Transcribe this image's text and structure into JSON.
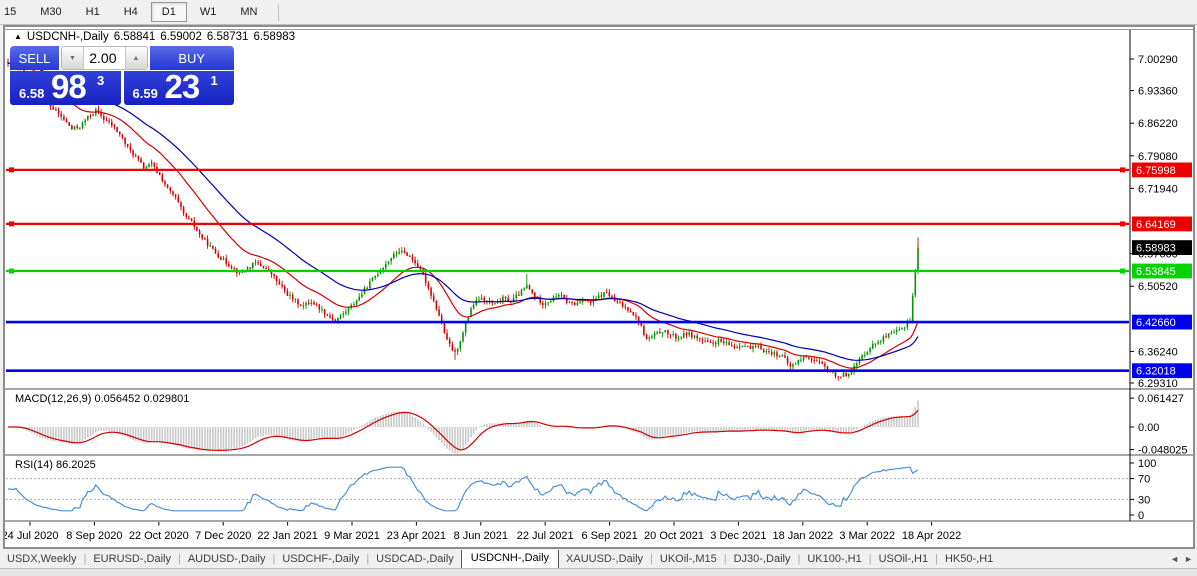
{
  "toolbar": {
    "timeframes": [
      {
        "label": "15",
        "active": false
      },
      {
        "label": "M30",
        "active": false
      },
      {
        "label": "H1",
        "active": false
      },
      {
        "label": "H4",
        "active": false
      },
      {
        "label": "D1",
        "active": true
      },
      {
        "label": "W1",
        "active": false
      },
      {
        "label": "MN",
        "active": false
      }
    ]
  },
  "window": {
    "collapse_icon": "▲",
    "title": "USDCNH-,Daily",
    "ohlc": {
      "open": "6.58841",
      "high": "6.59002",
      "low": "6.58731",
      "close": "6.58983"
    }
  },
  "trade_panel": {
    "sell_label": "SELL",
    "buy_label": "BUY",
    "volume": "2.00",
    "spinner_down": "▼",
    "spinner_up": "▲",
    "sell_price": {
      "small": "6.58",
      "big": "98",
      "sup": "3"
    },
    "buy_price": {
      "small": "6.59",
      "big": "23",
      "sup": "1"
    }
  },
  "colors": {
    "candle_up": "#009600",
    "candle_down": "#dc0000",
    "ma_fast": "#d40000",
    "ma_slow": "#0000b4",
    "level_red": "#ee0000",
    "level_green": "#00d300",
    "level_blue": "#0000f0",
    "current_label_bg": "#000000",
    "macd_hist": "#c9c9c9",
    "macd_signal": "#d40000",
    "rsi_line": "#4a90d9",
    "grid_dash": "#b0b0b0",
    "axis_text": "#000000"
  },
  "chart_data": {
    "type": "candlestick+indicators",
    "symbol": "USDCNH-",
    "timeframe": "Daily",
    "price_range_visible": [
      6.2931,
      7.0029
    ],
    "price_axis_ticks": [
      "7.00290",
      "6.93360",
      "6.86220",
      "6.79080",
      "6.71940",
      "6.57660",
      "6.50520",
      "6.36240",
      "6.29310"
    ],
    "current_price": 6.58983,
    "current_price_label": "6.58983",
    "levels": [
      {
        "label": "6.75998",
        "price": 6.75998,
        "color": "red"
      },
      {
        "label": "6.64169",
        "price": 6.64169,
        "color": "red"
      },
      {
        "label": "6.53845",
        "price": 6.53845,
        "color": "green"
      },
      {
        "label": "6.42660",
        "price": 6.4266,
        "color": "blue"
      },
      {
        "label": "6.32018",
        "price": 6.32018,
        "color": "blue"
      }
    ],
    "date_ticks": [
      "24 Jul 2020",
      "8 Sep 2020",
      "22 Oct 2020",
      "7 Dec 2020",
      "22 Jan 2021",
      "9 Mar 2021",
      "23 Apr 2021",
      "8 Jun 2021",
      "22 Jul 2021",
      "6 Sep 2021",
      "20 Oct 2021",
      "3 Dec 2021",
      "18 Jan 2022",
      "3 Mar 2022",
      "18 Apr 2022"
    ],
    "closes": [
      6.99,
      6.992,
      6.968,
      6.945,
      6.925,
      6.905,
      6.888,
      6.87,
      6.85,
      6.855,
      6.875,
      6.89,
      6.872,
      6.858,
      6.838,
      6.808,
      6.788,
      6.765,
      6.772,
      6.748,
      6.718,
      6.698,
      6.662,
      6.645,
      6.618,
      6.598,
      6.578,
      6.562,
      6.548,
      6.532,
      6.545,
      6.556,
      6.548,
      6.532,
      6.508,
      6.488,
      6.472,
      6.462,
      6.472,
      6.458,
      6.442,
      6.43,
      6.445,
      6.462,
      6.482,
      6.505,
      6.528,
      6.548,
      6.568,
      6.582,
      6.575,
      6.558,
      6.528,
      6.488,
      6.442,
      6.385,
      6.358,
      6.402,
      6.458,
      6.478,
      6.472,
      6.465,
      6.478,
      6.472,
      6.488,
      6.505,
      6.482,
      6.468,
      6.475,
      6.488,
      6.472,
      6.465,
      6.478,
      6.468,
      6.482,
      6.492,
      6.472,
      6.462,
      6.452,
      6.428,
      6.388,
      6.398,
      6.408,
      6.398,
      6.392,
      6.402,
      6.395,
      6.385,
      6.378,
      6.385,
      6.378,
      6.372,
      6.378,
      6.368,
      6.372,
      6.362,
      6.358,
      6.352,
      6.328,
      6.342,
      6.352,
      6.342,
      6.332,
      6.318,
      6.308,
      6.312,
      6.328,
      6.352,
      6.372,
      6.385,
      6.395,
      6.402,
      6.412,
      6.432,
      6.59
    ],
    "spikes": [
      {
        "i": 18,
        "price": 6.78,
        "dir": "high"
      },
      {
        "i": 49,
        "price": 6.589,
        "dir": "high"
      },
      {
        "i": 56,
        "price": 6.344,
        "dir": "low"
      },
      {
        "i": 65,
        "price": 6.532,
        "dir": "high"
      },
      {
        "i": 104,
        "price": 6.298,
        "dir": "low"
      },
      {
        "i": 114,
        "price": 6.612,
        "dir": "high"
      }
    ],
    "macd": {
      "label": "MACD(12,26,9)",
      "value_main": "0.056452",
      "value_signal": "0.029801",
      "axis_ticks": [
        "0.061427",
        "0.00",
        "-0.048025"
      ],
      "axis_values": [
        0.061427,
        0.0,
        -0.048025
      ]
    },
    "rsi": {
      "label": "RSI(14)",
      "value": "86.2025",
      "axis_ticks": [
        "100",
        "70",
        "30",
        "0"
      ],
      "axis_values": [
        100,
        70,
        30,
        0
      ],
      "dashed_levels": [
        70,
        30
      ]
    }
  },
  "tab_bar": {
    "tabs": [
      {
        "label": "USDX,Weekly",
        "active": false
      },
      {
        "label": "EURUSD-,Daily",
        "active": false
      },
      {
        "label": "AUDUSD-,Daily",
        "active": false
      },
      {
        "label": "USDCHF-,Daily",
        "active": false
      },
      {
        "label": "USDCAD-,Daily",
        "active": false
      },
      {
        "label": "USDCNH-,Daily",
        "active": true
      },
      {
        "label": "XAUUSD-,Daily",
        "active": false
      },
      {
        "label": "UKOil-,M15",
        "active": false
      },
      {
        "label": "DJ30-,Daily",
        "active": false
      },
      {
        "label": "UK100-,H1",
        "active": false
      },
      {
        "label": "USOil-,H1",
        "active": false
      },
      {
        "label": "HK50-,H1",
        "active": false
      }
    ],
    "scroll_left": "◄",
    "scroll_right": "►"
  }
}
